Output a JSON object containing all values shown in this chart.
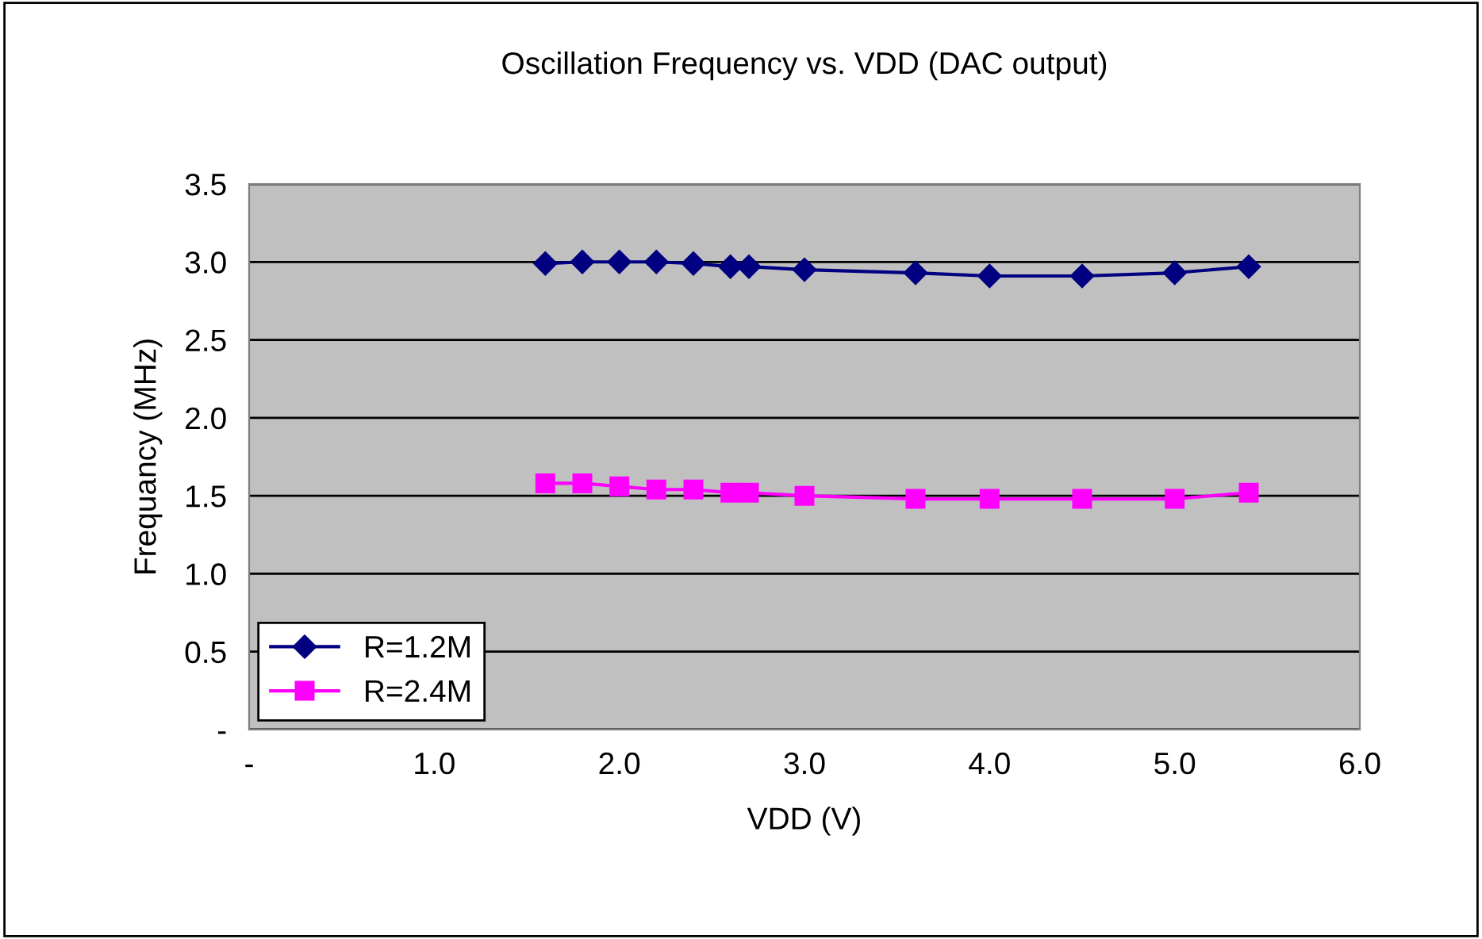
{
  "chart_data": {
    "type": "line",
    "title": "Oscillation Frequency vs. VDD (DAC output)",
    "xlabel": "VDD (V)",
    "ylabel": "Frequancy (MHz)",
    "x": [
      1.6,
      1.8,
      2.0,
      2.2,
      2.4,
      2.6,
      2.7,
      3.0,
      3.6,
      4.0,
      4.5,
      5.0,
      5.4
    ],
    "series": [
      {
        "name": "R=1.2M",
        "color": "#000080",
        "marker": "diamond",
        "values": [
          2.99,
          3.0,
          3.0,
          3.0,
          2.99,
          2.97,
          2.97,
          2.95,
          2.93,
          2.91,
          2.91,
          2.93,
          2.97
        ]
      },
      {
        "name": "R=2.4M",
        "color": "#ff00ff",
        "marker": "square",
        "values": [
          1.58,
          1.58,
          1.56,
          1.54,
          1.54,
          1.52,
          1.52,
          1.5,
          1.48,
          1.48,
          1.48,
          1.48,
          1.52
        ]
      }
    ],
    "xlim": [
      0,
      6
    ],
    "xticks": [
      {
        "value": 0,
        "label": "-"
      },
      {
        "value": 1,
        "label": "1.0"
      },
      {
        "value": 2,
        "label": "2.0"
      },
      {
        "value": 3,
        "label": "3.0"
      },
      {
        "value": 4,
        "label": "4.0"
      },
      {
        "value": 5,
        "label": "5.0"
      },
      {
        "value": 6,
        "label": "6.0"
      }
    ],
    "ylim": [
      0,
      3.5
    ],
    "yticks": [
      {
        "value": 0,
        "label": "-"
      },
      {
        "value": 0.5,
        "label": "0.5"
      },
      {
        "value": 1,
        "label": "1.0"
      },
      {
        "value": 1.5,
        "label": "1.5"
      },
      {
        "value": 2,
        "label": "2.0"
      },
      {
        "value": 2.5,
        "label": "2.5"
      },
      {
        "value": 3,
        "label": "3.0"
      },
      {
        "value": 3.5,
        "label": "3.5"
      }
    ],
    "grid": "y",
    "legend": "bottom left"
  }
}
